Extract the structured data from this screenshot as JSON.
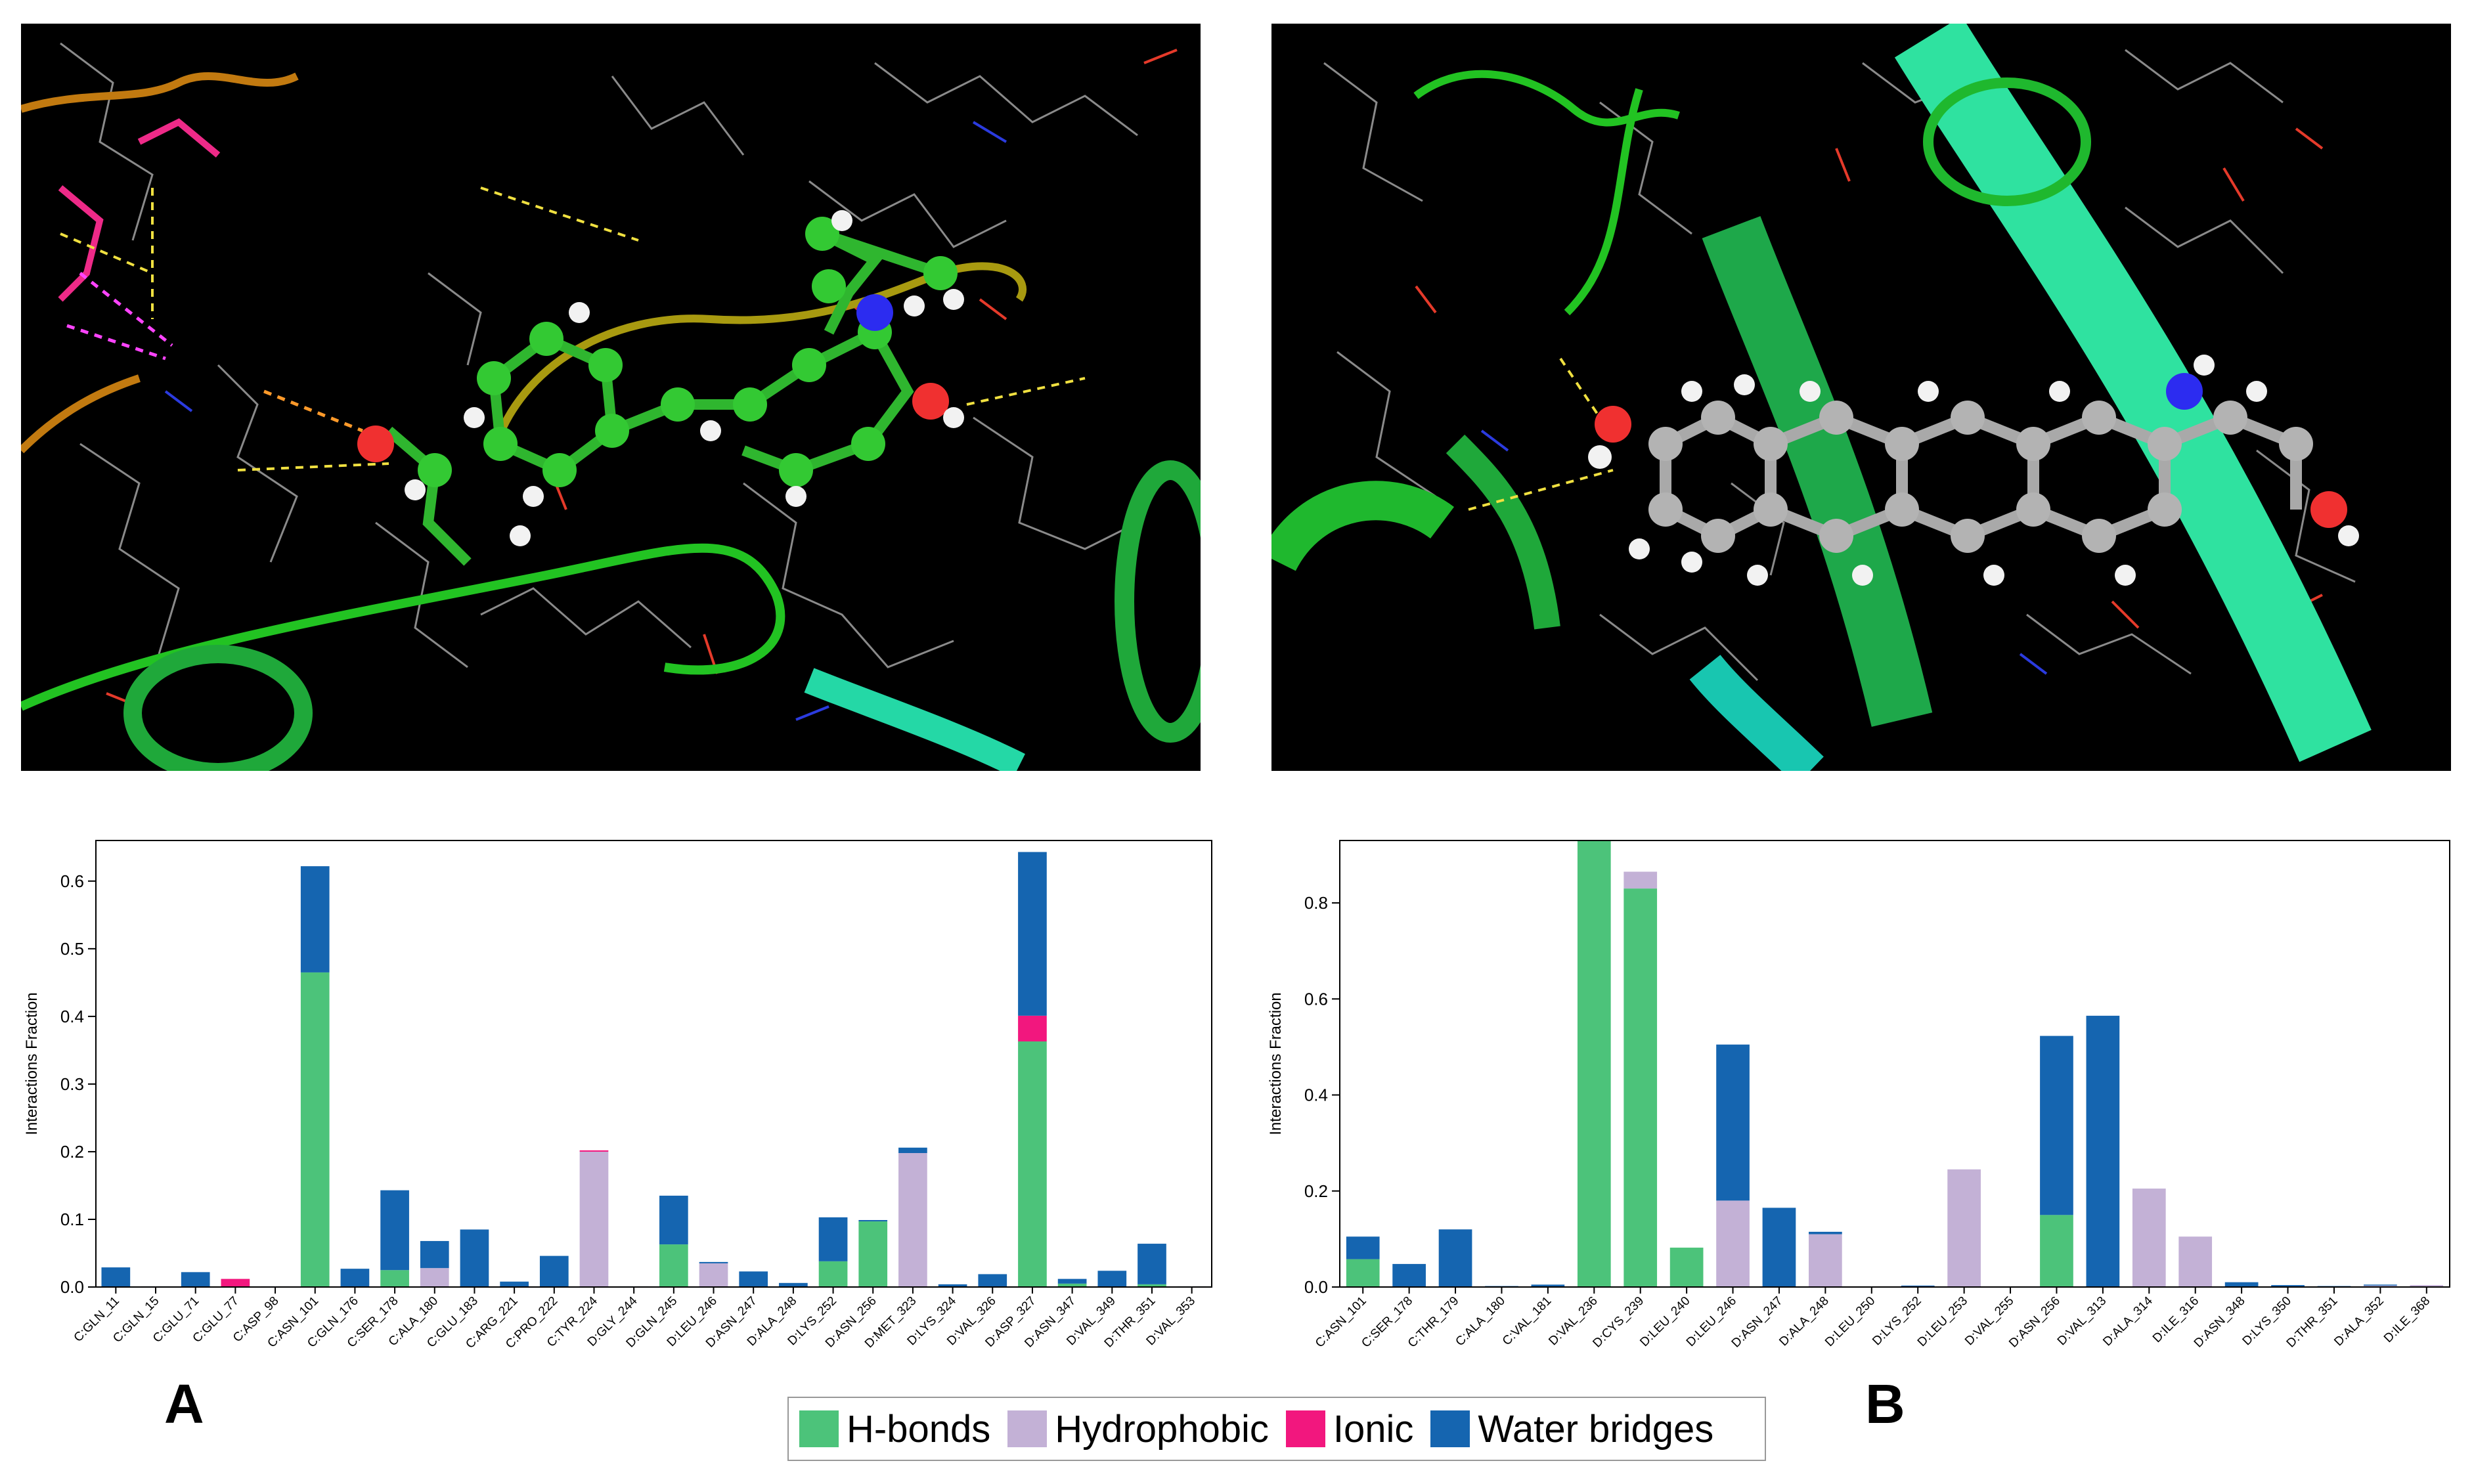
{
  "panels": [
    {
      "letter": "A"
    },
    {
      "letter": "B"
    }
  ],
  "legend": [
    {
      "label": "H-bonds",
      "color": "#4cc37a"
    },
    {
      "label": "Hydrophobic",
      "color": "#c3b1d6"
    },
    {
      "label": "Ionic",
      "color": "#f2177e"
    },
    {
      "label": "Water bridges",
      "color": "#1565b0"
    }
  ],
  "chart_data": [
    {
      "type": "bar",
      "stacked": true,
      "ylabel": "Interactions Fraction",
      "ylim": [
        0,
        0.66
      ],
      "yticks": [
        "0.0",
        "0.1",
        "0.2",
        "0.3",
        "0.4",
        "0.5",
        "0.6"
      ],
      "ytick_values": [
        0,
        0.1,
        0.2,
        0.3,
        0.4,
        0.5,
        0.6
      ],
      "categories": [
        "C:GLN_11",
        "C:GLN_15",
        "C:GLU_71",
        "C:GLU_77",
        "C:ASP_98",
        "C:ASN_101",
        "C:GLN_176",
        "C:SER_178",
        "C:ALA_180",
        "C:GLU_183",
        "C:ARG_221",
        "C:PRO_222",
        "C:TYR_224",
        "D:GLY_244",
        "D:GLN_245",
        "D:LEU_246",
        "D:ASN_247",
        "D:ALA_248",
        "D:LYS_252",
        "D:ASN_256",
        "D:MET_323",
        "D:LYS_324",
        "D:VAL_326",
        "D:ASP_327",
        "D:ASN_347",
        "D:VAL_349",
        "D:THR_351",
        "D:VAL_353"
      ],
      "series": [
        {
          "name": "H-bonds",
          "values": [
            0,
            0,
            0,
            0,
            0,
            0.465,
            0,
            0.025,
            0,
            0,
            0,
            0,
            0,
            0,
            0.063,
            0,
            0,
            0,
            0.038,
            0.097,
            0,
            0,
            0,
            0.363,
            0.005,
            0,
            0.004,
            0
          ]
        },
        {
          "name": "Hydrophobic",
          "values": [
            0,
            0,
            0,
            0,
            0,
            0,
            0,
            0,
            0.028,
            0,
            0,
            0,
            0.2,
            0,
            0,
            0.035,
            0,
            0,
            0,
            0,
            0.198,
            0,
            0,
            0,
            0,
            0,
            0,
            0
          ]
        },
        {
          "name": "Ionic",
          "values": [
            0,
            0,
            0,
            0.012,
            0,
            0,
            0,
            0,
            0,
            0,
            0,
            0,
            0.002,
            0,
            0,
            0,
            0,
            0,
            0,
            0,
            0,
            0,
            0,
            0.038,
            0,
            0,
            0,
            0
          ]
        },
        {
          "name": "Water bridges",
          "values": [
            0.029,
            0.001,
            0.022,
            0,
            0.001,
            0.157,
            0.027,
            0.118,
            0.04,
            0.085,
            0.008,
            0.046,
            0,
            0.001,
            0.072,
            0.002,
            0.023,
            0.006,
            0.065,
            0.002,
            0.008,
            0.004,
            0.019,
            0.242,
            0.007,
            0.024,
            0.06,
            0.001
          ]
        }
      ]
    },
    {
      "type": "bar",
      "stacked": true,
      "ylabel": "Interactions Fraction",
      "ylim": [
        0,
        0.93
      ],
      "yticks": [
        "0.0",
        "0.2",
        "0.4",
        "0.6",
        "0.8"
      ],
      "ytick_values": [
        0,
        0.2,
        0.4,
        0.6,
        0.8
      ],
      "categories": [
        "C:ASN_101",
        "C:SER_178",
        "C:THR_179",
        "C:ALA_180",
        "C:VAL_181",
        "D:VAL_236",
        "D:CYS_239",
        "D:LEU_240",
        "D:LEU_246",
        "D:ASN_247",
        "D:ALA_248",
        "D:LEU_250",
        "D:LYS_252",
        "D:LEU_253",
        "D:VAL_255",
        "D:ASN_256",
        "D:VAL_313",
        "D:ALA_314",
        "D:ILE_316",
        "D:ASN_348",
        "D:LYS_350",
        "D:THR_351",
        "D:ALA_352",
        "D:ILE_368"
      ],
      "series": [
        {
          "name": "H-bonds",
          "values": [
            0.058,
            0,
            0,
            0,
            0,
            0.93,
            0.83,
            0.082,
            0,
            0,
            0,
            0,
            0,
            0,
            0,
            0.15,
            0,
            0,
            0,
            0,
            0,
            0,
            0,
            0
          ]
        },
        {
          "name": "Hydrophobic",
          "values": [
            0,
            0,
            0,
            0,
            0,
            0,
            0.035,
            0,
            0.18,
            0,
            0.11,
            0,
            0,
            0.245,
            0,
            0,
            0,
            0.205,
            0.105,
            0,
            0,
            0,
            0.003,
            0.004
          ]
        },
        {
          "name": "Ionic",
          "values": [
            0,
            0,
            0,
            0,
            0,
            0,
            0,
            0,
            0,
            0,
            0,
            0,
            0,
            0,
            0,
            0,
            0,
            0,
            0,
            0,
            0,
            0,
            0,
            0
          ]
        },
        {
          "name": "Water bridges",
          "values": [
            0.047,
            0.048,
            0.12,
            0.002,
            0.005,
            0,
            0,
            0,
            0.325,
            0.165,
            0.005,
            0.001,
            0.003,
            0,
            0.001,
            0.373,
            0.565,
            0,
            0,
            0.01,
            0.004,
            0.002,
            0.002,
            0
          ]
        }
      ]
    }
  ]
}
